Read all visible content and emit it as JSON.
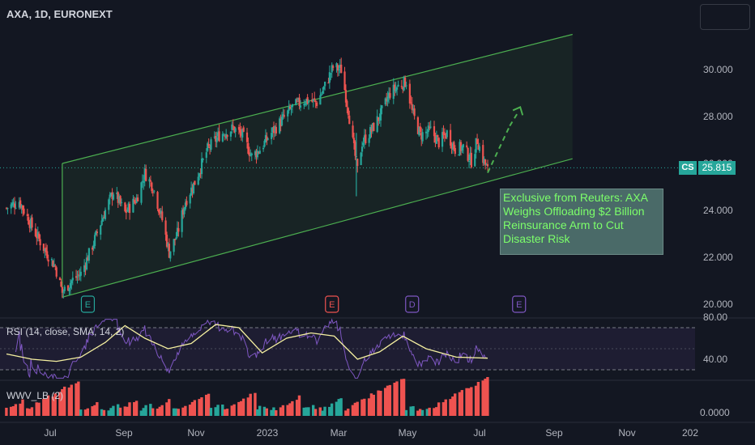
{
  "symbol_title": "AXA, 1D, EURONEXT",
  "current_price": {
    "tag": "CS",
    "value": "25.815",
    "color": "#26a69a"
  },
  "news_box": {
    "text": "Exclusive from Reuters: AXA Weighs Offloading $2 Billion Reinsurance Arm to Cut Disaster Risk"
  },
  "colors": {
    "background": "#131722",
    "up": "#26a69a",
    "down": "#ef5350",
    "channel": "#4caf50",
    "rsi": "#7e57c2",
    "rsi_ma": "#f5f0a0",
    "projection": "#4caf50"
  },
  "indicators": {
    "rsi_label": "RSI (14, close, SMA, 14, 2)",
    "wwv_label": "WWV_LB (2)"
  },
  "chart_data": {
    "type": "candlestick",
    "price_axis": {
      "ticks": [
        "30.000",
        "28.000",
        "26.000",
        "24.000",
        "22.000",
        "20.000"
      ],
      "range": [
        19.7,
        31.4
      ]
    },
    "rsi_axis": {
      "ticks": [
        "80.00",
        "40.00"
      ],
      "bands": [
        30,
        70
      ]
    },
    "volume_axis": {
      "ticks": [
        "0.0000"
      ]
    },
    "time_axis": {
      "ticks": [
        "Jul",
        "Sep",
        "Nov",
        "2023",
        "Mar",
        "May",
        "Jul",
        "Sep",
        "Nov",
        "202"
      ]
    },
    "events": [
      {
        "letter": "E",
        "color": "#26a69a",
        "date": "2022-07-28"
      },
      {
        "letter": "E",
        "color": "#ef5350",
        "date": "2023-02-23"
      },
      {
        "letter": "D",
        "color": "#7e57c2",
        "date": "2023-05-03"
      },
      {
        "letter": "E",
        "color": "#7e57c2",
        "date": "2023-08-03"
      }
    ],
    "price_path": [
      [
        "2022-05-19",
        24.1
      ],
      [
        "2022-05-30",
        24.4
      ],
      [
        "2022-06-10",
        23.3
      ],
      [
        "2022-06-20",
        22.4
      ],
      [
        "2022-06-30",
        21.6
      ],
      [
        "2022-07-06",
        20.5
      ],
      [
        "2022-07-14",
        21.0
      ],
      [
        "2022-07-22",
        21.3
      ],
      [
        "2022-08-01",
        22.5
      ],
      [
        "2022-08-12",
        24.0
      ],
      [
        "2022-08-19",
        24.8
      ],
      [
        "2022-08-29",
        23.9
      ],
      [
        "2022-09-08",
        24.5
      ],
      [
        "2022-09-15",
        25.6
      ],
      [
        "2022-09-22",
        25.0
      ],
      [
        "2022-09-30",
        23.6
      ],
      [
        "2022-10-06",
        22.2
      ],
      [
        "2022-10-13",
        23.0
      ],
      [
        "2022-10-20",
        24.4
      ],
      [
        "2022-10-28",
        25.2
      ],
      [
        "2022-11-08",
        26.6
      ],
      [
        "2022-11-18",
        27.2
      ],
      [
        "2022-11-30",
        27.5
      ],
      [
        "2022-12-08",
        27.2
      ],
      [
        "2022-12-16",
        26.3
      ],
      [
        "2022-12-23",
        26.6
      ],
      [
        "2023-01-02",
        27.3
      ],
      [
        "2023-01-12",
        27.9
      ],
      [
        "2023-01-20",
        28.4
      ],
      [
        "2023-01-31",
        28.7
      ],
      [
        "2023-02-10",
        28.6
      ],
      [
        "2023-02-17",
        29.3
      ],
      [
        "2023-02-24",
        30.1
      ],
      [
        "2023-03-03",
        30.0
      ],
      [
        "2023-03-09",
        28.3
      ],
      [
        "2023-03-13",
        26.9
      ],
      [
        "2023-03-17",
        25.7
      ],
      [
        "2023-03-21",
        26.9
      ],
      [
        "2023-03-29",
        27.4
      ],
      [
        "2023-04-06",
        28.1
      ],
      [
        "2023-04-14",
        29.0
      ],
      [
        "2023-04-21",
        29.3
      ],
      [
        "2023-04-28",
        29.5
      ],
      [
        "2023-05-03",
        28.2
      ],
      [
        "2023-05-10",
        27.2
      ],
      [
        "2023-05-19",
        27.4
      ],
      [
        "2023-05-26",
        26.9
      ],
      [
        "2023-06-02",
        27.3
      ],
      [
        "2023-06-09",
        26.6
      ],
      [
        "2023-06-16",
        26.7
      ],
      [
        "2023-06-23",
        26.1
      ],
      [
        "2023-06-28",
        27.0
      ],
      [
        "2023-07-03",
        26.2
      ],
      [
        "2023-07-07",
        25.7
      ]
    ],
    "channel": {
      "upper": [
        [
          "2022-07-06",
          26.0
        ],
        [
          "2023-09-18",
          31.5
        ]
      ],
      "lower": [
        [
          "2022-07-06",
          20.3
        ],
        [
          "2023-09-18",
          26.2
        ]
      ]
    },
    "projection": [
      [
        "2023-07-07",
        25.6
      ],
      [
        "2023-07-26",
        27.6
      ],
      [
        "2023-08-04",
        28.4
      ]
    ],
    "rsi_ma_path": [
      [
        "2022-05-19",
        45
      ],
      [
        "2022-06-10",
        40
      ],
      [
        "2022-07-01",
        38
      ],
      [
        "2022-07-22",
        42
      ],
      [
        "2022-08-12",
        56
      ],
      [
        "2022-08-29",
        72
      ],
      [
        "2022-09-15",
        60
      ],
      [
        "2022-10-05",
        50
      ],
      [
        "2022-10-25",
        55
      ],
      [
        "2022-11-15",
        73
      ],
      [
        "2022-12-05",
        70
      ],
      [
        "2022-12-25",
        46
      ],
      [
        "2023-01-15",
        60
      ],
      [
        "2023-02-05",
        65
      ],
      [
        "2023-02-25",
        62
      ],
      [
        "2023-03-17",
        40
      ],
      [
        "2023-04-05",
        47
      ],
      [
        "2023-04-25",
        62
      ],
      [
        "2023-05-15",
        50
      ],
      [
        "2023-06-10",
        42
      ],
      [
        "2023-07-07",
        41
      ]
    ]
  }
}
